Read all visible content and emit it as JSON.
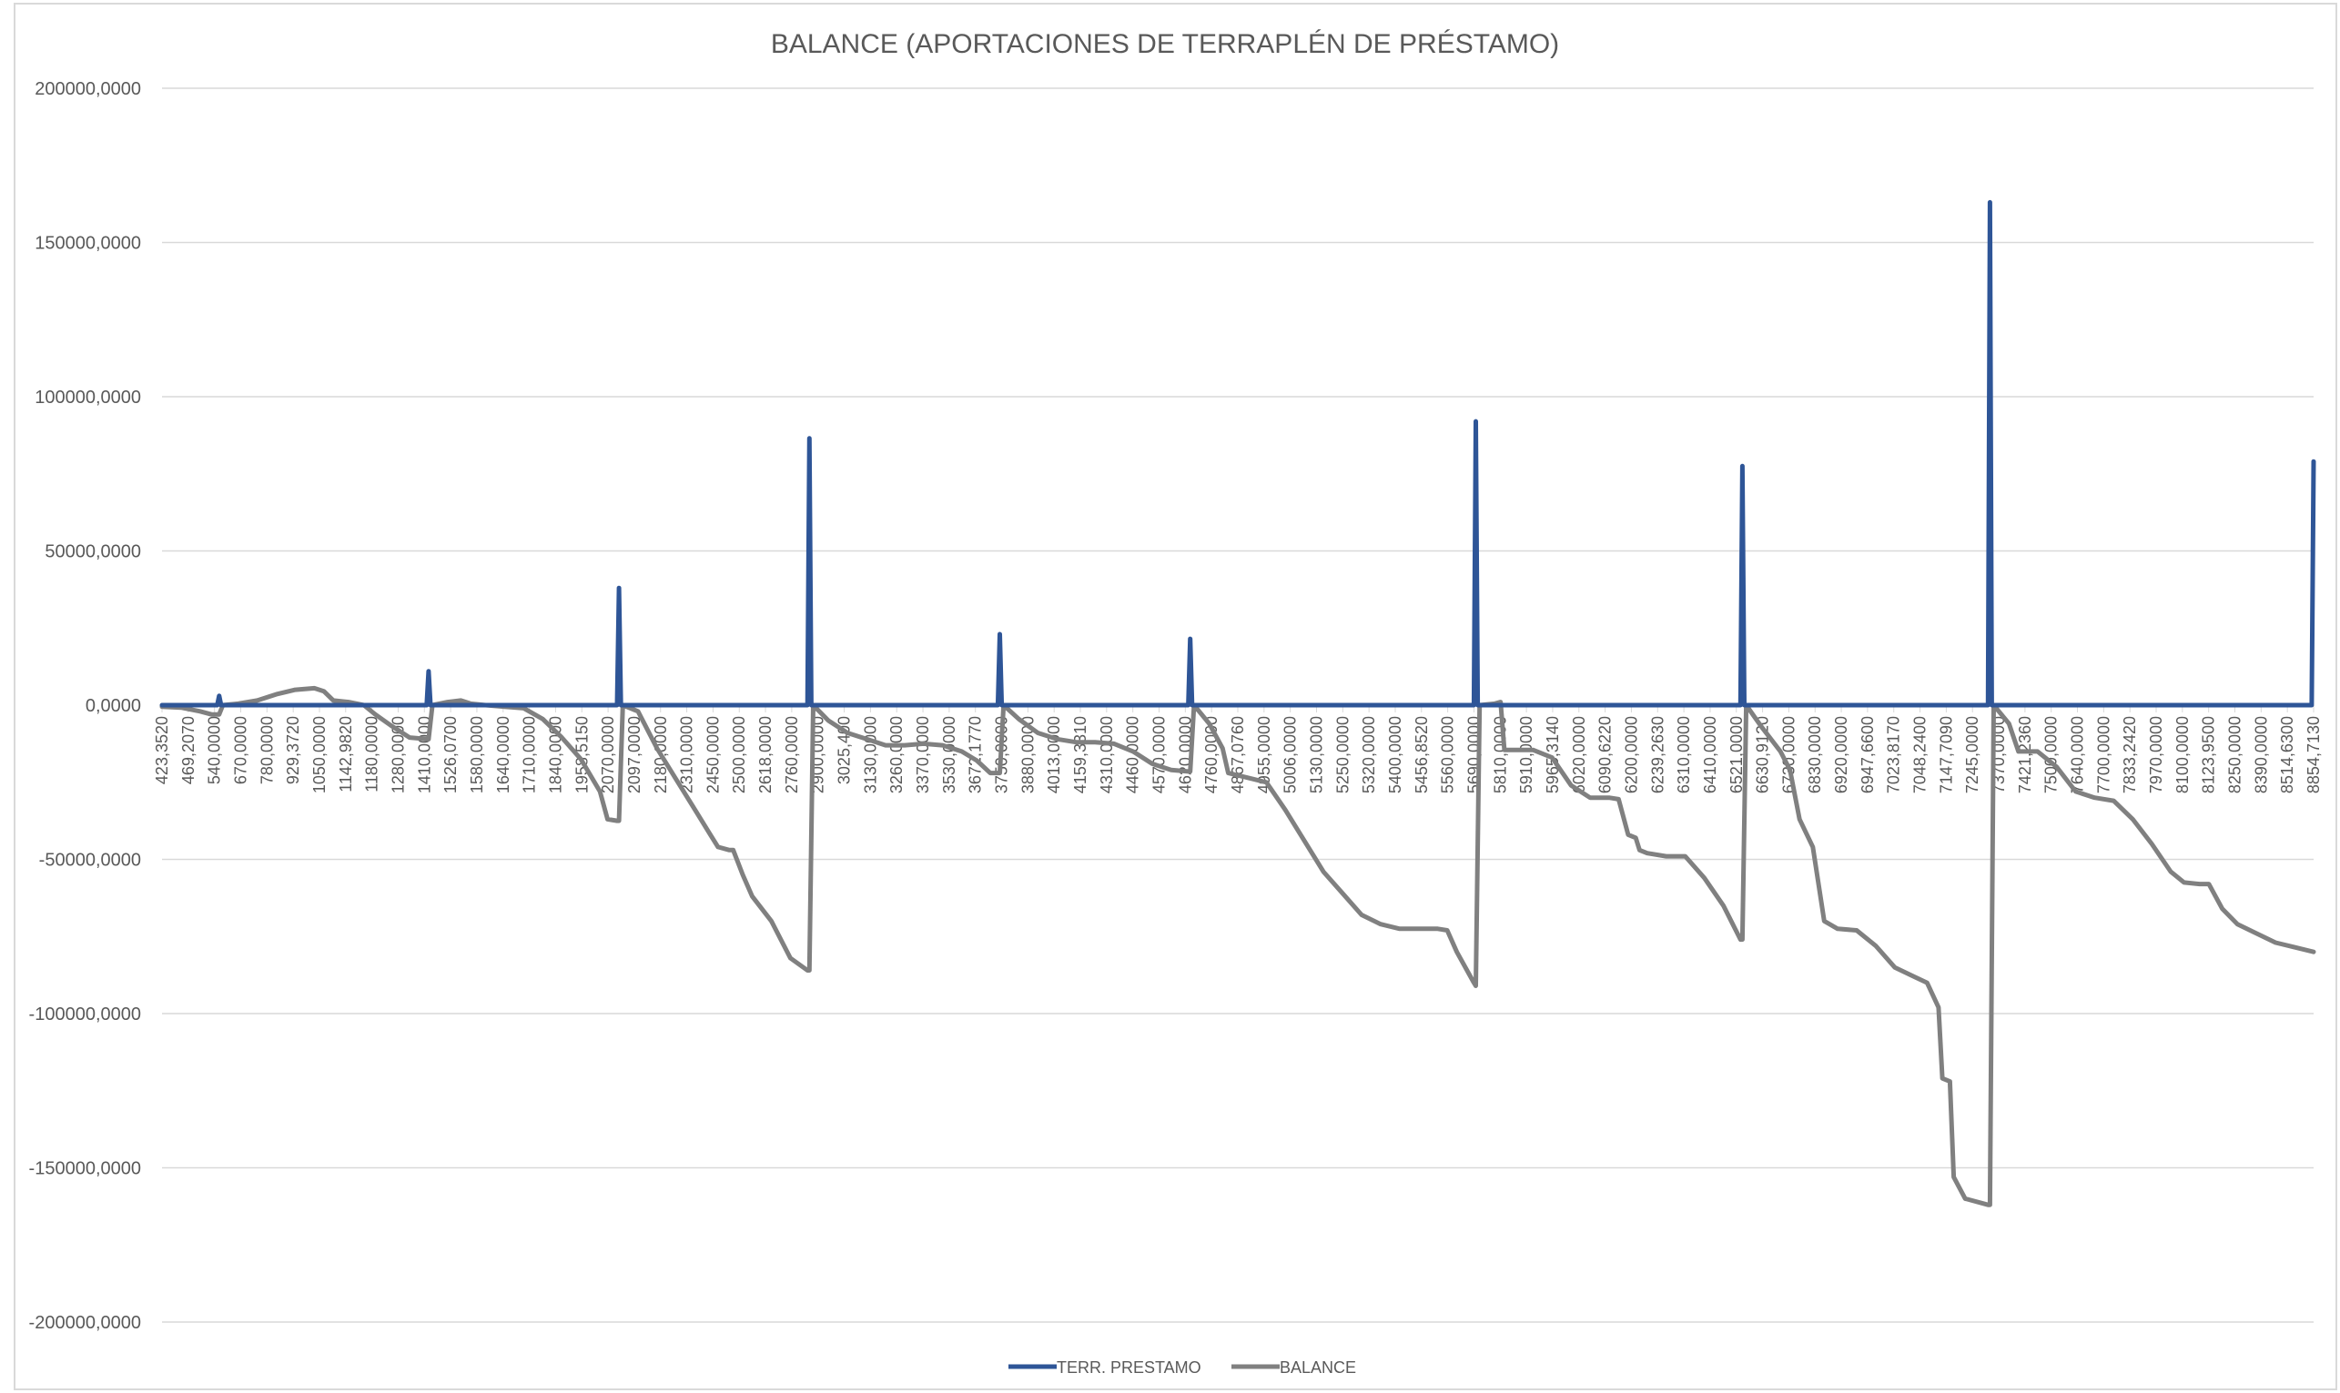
{
  "chart_data": {
    "type": "line",
    "title": "BALANCE (APORTACIONES DE TERRAPLÉN DE PRÉSTAMO)",
    "xlabel": "",
    "ylabel": "",
    "ylim": [
      -200000,
      200000
    ],
    "y_ticks": [
      200000,
      150000,
      100000,
      50000,
      0,
      -50000,
      -100000,
      -150000,
      -200000
    ],
    "y_tick_labels": [
      "200000,0000",
      "150000,0000",
      "100000,0000",
      "50000,0000",
      "0,0000",
      "-50000,0000",
      "-100000,0000",
      "-150000,0000",
      "-200000,0000"
    ],
    "grid": true,
    "legend_position": "bottom",
    "x_categories_shown": [
      "423,3520",
      "469,2070",
      "540,0000",
      "670,0000",
      "780,0000",
      "929,3720",
      "1050,0000",
      "1142,9820",
      "1180,0000",
      "1280,0000",
      "1410,0000",
      "1526,0700",
      "1580,0000",
      "1640,0000",
      "1710,0000",
      "1840,0000",
      "1958,5150",
      "2070,0000",
      "2097,0000",
      "2180,0000",
      "2310,0000",
      "2450,0000",
      "2500,0000",
      "2618,0000",
      "2760,0000",
      "2900,0000",
      "3025,400",
      "3130,0000",
      "3260,0000",
      "3370,0000",
      "3530,0000",
      "3672,1770",
      "3750,0000",
      "3880,0000",
      "4013,0000",
      "4159,3310",
      "4310,0000",
      "4460,0000",
      "4570,0000",
      "4620,0000",
      "4760,0000",
      "4867,0760",
      "4955,0000",
      "5006,0000",
      "5130,0000",
      "5250,0000",
      "5320,0000",
      "5400,0000",
      "5456,8520",
      "5560,0000",
      "5690,0000",
      "5810,0000",
      "5910,0000",
      "5965,3140",
      "6020,0000",
      "6090,6220",
      "6200,0000",
      "6239,2630",
      "6310,0000",
      "6410,0000",
      "6521,0000",
      "6630,9120",
      "6730,0000",
      "6830,0000",
      "6920,0000",
      "6947,6600",
      "7023,8170",
      "7048,2400",
      "7147,7090",
      "7245,0000",
      "7370,0000",
      "7421,2360",
      "7500,0000",
      "7640,0000",
      "7700,0000",
      "7833,2420",
      "7970,0000",
      "8100,0000",
      "8123,9500",
      "8250,0000",
      "8390,0000",
      "8514,6300",
      "8854,7130"
    ],
    "x_index_max": 82,
    "series": [
      {
        "name": "TERR. PRESTAMO",
        "color": "#2E5597",
        "points": [
          [
            0,
            0
          ],
          [
            2.9,
            0
          ],
          [
            3,
            3000
          ],
          [
            3.1,
            0
          ],
          [
            13.9,
            0
          ],
          [
            14,
            11000
          ],
          [
            14.1,
            0
          ],
          [
            23.9,
            0
          ],
          [
            24,
            38000
          ],
          [
            24.1,
            0
          ],
          [
            33.9,
            0
          ],
          [
            34,
            86500
          ],
          [
            34.1,
            0
          ],
          [
            43.9,
            0
          ],
          [
            44,
            23000
          ],
          [
            44.1,
            0
          ],
          [
            53.9,
            0
          ],
          [
            54,
            21500
          ],
          [
            54.1,
            0
          ],
          [
            68.9,
            0
          ],
          [
            69,
            92000
          ],
          [
            69.1,
            0
          ],
          [
            82.9,
            0
          ],
          [
            83,
            77500
          ],
          [
            83.1,
            0
          ],
          [
            95.9,
            0
          ],
          [
            96,
            163000
          ],
          [
            96.1,
            0
          ],
          [
            112.9,
            0
          ],
          [
            113,
            79000
          ]
        ]
      },
      {
        "name": "BALANCE",
        "color": "#808080",
        "points": [
          [
            0,
            -500
          ],
          [
            1,
            -800
          ],
          [
            2,
            -2000
          ],
          [
            2.6,
            -3000
          ],
          [
            3,
            -3000
          ],
          [
            3.2,
            0
          ],
          [
            4,
            500
          ],
          [
            5,
            1500
          ],
          [
            6,
            3500
          ],
          [
            7,
            5000
          ],
          [
            8,
            5500
          ],
          [
            8.5,
            4500
          ],
          [
            9,
            1500
          ],
          [
            9.8,
            1000
          ],
          [
            10.6,
            0
          ],
          [
            11.2,
            -3000
          ],
          [
            12,
            -6500
          ],
          [
            13,
            -10500
          ],
          [
            13.9,
            -11000
          ],
          [
            14,
            -11000
          ],
          [
            14.2,
            0
          ],
          [
            15,
            1000
          ],
          [
            15.7,
            1500
          ],
          [
            16.2,
            500
          ],
          [
            17,
            0
          ],
          [
            18,
            -500
          ],
          [
            19,
            -1000
          ],
          [
            20,
            -4500
          ],
          [
            21,
            -10500
          ],
          [
            22,
            -17500
          ],
          [
            23,
            -28000
          ],
          [
            23.4,
            -37000
          ],
          [
            23.9,
            -37500
          ],
          [
            24,
            -37500
          ],
          [
            24.2,
            0
          ],
          [
            25,
            -2000
          ],
          [
            26,
            -14000
          ],
          [
            27,
            -24000
          ],
          [
            28,
            -34000
          ],
          [
            28.8,
            -42000
          ],
          [
            29.2,
            -46000
          ],
          [
            29.8,
            -47000
          ],
          [
            30,
            -47000
          ],
          [
            30.5,
            -55000
          ],
          [
            31,
            -62000
          ],
          [
            32,
            -70000
          ],
          [
            33,
            -82000
          ],
          [
            33.9,
            -86000
          ],
          [
            34,
            -86000
          ],
          [
            34.2,
            0
          ],
          [
            35,
            -5000
          ],
          [
            36,
            -9000
          ],
          [
            37,
            -11000
          ],
          [
            38,
            -13000
          ],
          [
            39,
            -13000
          ],
          [
            40,
            -12500
          ],
          [
            41,
            -13000
          ],
          [
            42,
            -15000
          ],
          [
            42.8,
            -18000
          ],
          [
            43.5,
            -22000
          ],
          [
            43.9,
            -22000
          ],
          [
            44,
            -22000
          ],
          [
            44.2,
            0
          ],
          [
            45,
            -4500
          ],
          [
            46,
            -9000
          ],
          [
            47,
            -11000
          ],
          [
            48,
            -12000
          ],
          [
            49,
            -12000
          ],
          [
            50,
            -12500
          ],
          [
            51,
            -15000
          ],
          [
            52,
            -19000
          ],
          [
            53,
            -21000
          ],
          [
            53.9,
            -21500
          ],
          [
            54,
            -21500
          ],
          [
            54.2,
            0
          ],
          [
            55,
            -6000
          ],
          [
            55.7,
            -14000
          ],
          [
            56,
            -22000
          ],
          [
            57,
            -23500
          ],
          [
            58,
            -25000
          ],
          [
            59,
            -34000
          ],
          [
            60,
            -44000
          ],
          [
            61,
            -54000
          ],
          [
            62,
            -61000
          ],
          [
            63,
            -68000
          ],
          [
            64,
            -71000
          ],
          [
            65,
            -72500
          ],
          [
            66,
            -72500
          ],
          [
            67,
            -72500
          ],
          [
            67.5,
            -73000
          ],
          [
            68,
            -80000
          ],
          [
            68.9,
            -90000
          ],
          [
            69,
            -91000
          ],
          [
            69.2,
            0
          ],
          [
            70,
            500
          ],
          [
            70.3,
            1000
          ],
          [
            70.5,
            -14500
          ],
          [
            71,
            -14500
          ],
          [
            72,
            -14500
          ],
          [
            73,
            -17000
          ],
          [
            74,
            -26000
          ],
          [
            75,
            -30000
          ],
          [
            76,
            -30000
          ],
          [
            76.5,
            -30500
          ],
          [
            77,
            -42000
          ],
          [
            77.4,
            -43000
          ],
          [
            77.6,
            -47000
          ],
          [
            78,
            -48000
          ],
          [
            79,
            -49000
          ],
          [
            80,
            -49000
          ],
          [
            81,
            -56000
          ],
          [
            82,
            -65000
          ],
          [
            82.9,
            -76000
          ],
          [
            83,
            -76000
          ],
          [
            83.2,
            0
          ],
          [
            84,
            -7000
          ],
          [
            85,
            -15000
          ],
          [
            85.5,
            -21000
          ],
          [
            86,
            -37000
          ],
          [
            86.7,
            -46000
          ],
          [
            87.3,
            -70000
          ],
          [
            88,
            -72500
          ],
          [
            89,
            -73000
          ],
          [
            90,
            -78000
          ],
          [
            91,
            -85000
          ],
          [
            92,
            -88000
          ],
          [
            92.7,
            -90000
          ],
          [
            93.3,
            -98000
          ],
          [
            93.5,
            -121000
          ],
          [
            93.9,
            -122000
          ],
          [
            94.1,
            -153000
          ],
          [
            94.7,
            -160000
          ],
          [
            95.9,
            -162000
          ],
          [
            96,
            -162000
          ],
          [
            96.2,
            0
          ],
          [
            97,
            -6000
          ],
          [
            97.5,
            -15000
          ],
          [
            98.5,
            -15000
          ],
          [
            99.5,
            -20000
          ],
          [
            100.5,
            -28000
          ],
          [
            101.5,
            -30000
          ],
          [
            102.5,
            -31000
          ],
          [
            103.5,
            -37000
          ],
          [
            104.5,
            -45000
          ],
          [
            105.5,
            -54000
          ],
          [
            106.2,
            -57500
          ],
          [
            107,
            -58000
          ],
          [
            107.5,
            -58000
          ],
          [
            108.2,
            -66000
          ],
          [
            109,
            -71000
          ],
          [
            110,
            -74000
          ],
          [
            111,
            -77000
          ],
          [
            112,
            -78500
          ],
          [
            113,
            -80000
          ]
        ]
      }
    ]
  }
}
